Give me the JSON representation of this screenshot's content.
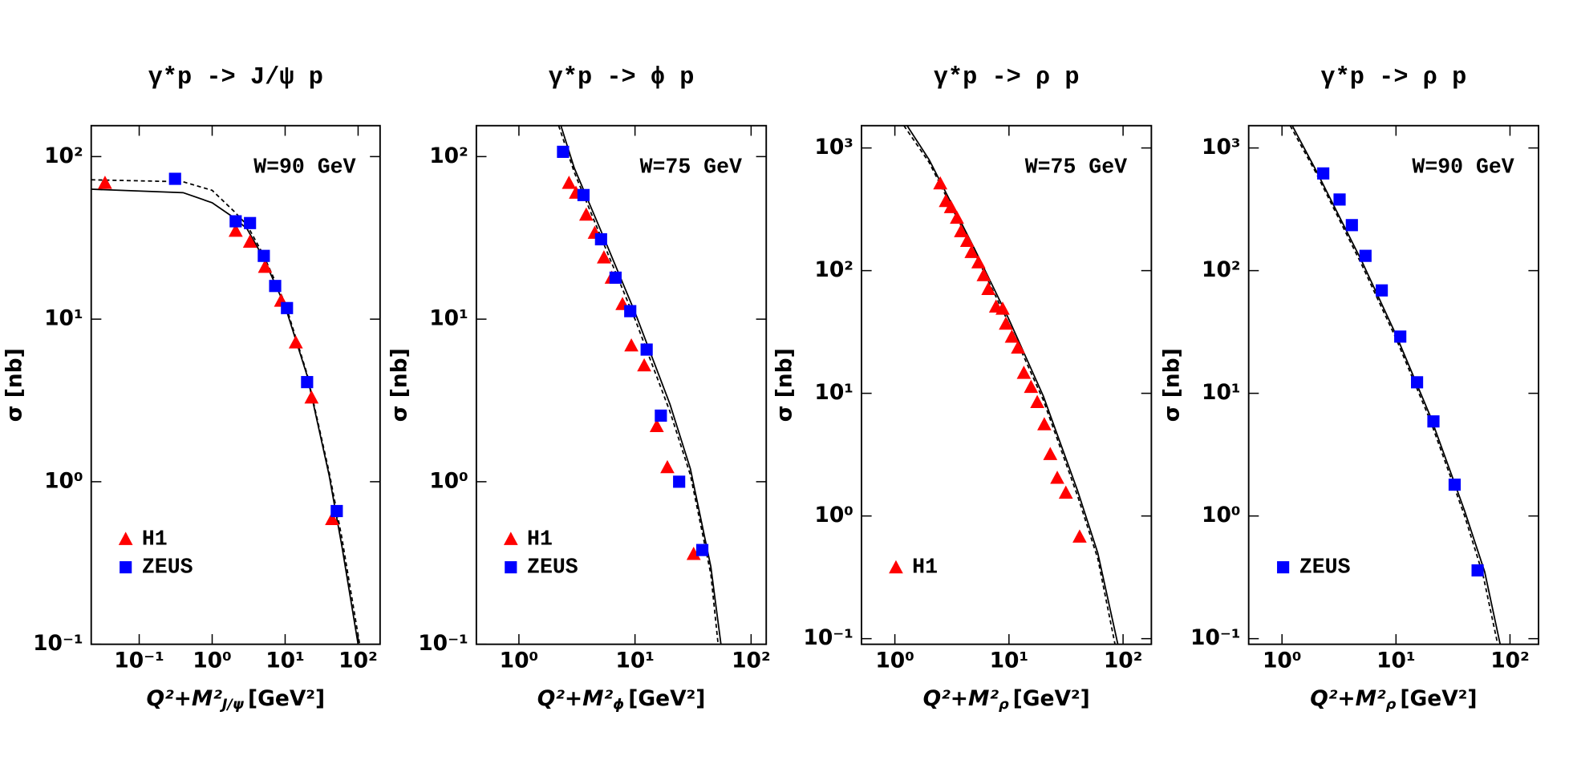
{
  "chart_data": [
    {
      "type": "scatter",
      "title": "γ*p -> J/ψ p",
      "annotation": "W=90 GeV",
      "xlabel": {
        "base": "Q²+M²",
        "sub": "J/ψ",
        "unit": "[GeV²]"
      },
      "ylabel": "σ [nb]",
      "xscale": "log",
      "yscale": "log",
      "legend": "lower left",
      "xlim": [
        0.022,
        200
      ],
      "ylim": [
        0.1,
        155
      ],
      "xticks": [
        {
          "value": 0.1,
          "label": "10⁻¹"
        },
        {
          "value": 1,
          "label": "10⁰"
        },
        {
          "value": 10,
          "label": "10¹"
        },
        {
          "value": 100,
          "label": "10²"
        }
      ],
      "yticks": [
        {
          "value": 0.1,
          "label": "10⁻¹"
        },
        {
          "value": 1,
          "label": "10⁰"
        },
        {
          "value": 10,
          "label": "10¹"
        },
        {
          "value": 100,
          "label": "10²"
        }
      ],
      "series": [
        {
          "kind": "line",
          "style": "solid",
          "color": "#000000",
          "x": [
            0.022,
            0.4,
            1,
            2,
            3,
            5,
            10,
            20,
            40,
            60,
            100
          ],
          "values": [
            63,
            60,
            52,
            42,
            36,
            24,
            12,
            4.5,
            1.1,
            0.4,
            0.1
          ]
        },
        {
          "kind": "line",
          "style": "dashed",
          "color": "#000000",
          "x": [
            0.022,
            0.4,
            1,
            2,
            3,
            5,
            10,
            20,
            40,
            60,
            105
          ],
          "values": [
            72,
            70,
            62,
            46,
            38,
            25,
            12.5,
            4.6,
            1.15,
            0.45,
            0.1
          ]
        },
        {
          "kind": "marker",
          "name": "H1",
          "marker": "triangle",
          "color": "#ff0000",
          "x": [
            0.034,
            2.1,
            3.3,
            5.3,
            8.8,
            14,
            23,
            44
          ],
          "values": [
            69,
            35,
            30,
            21,
            13,
            7.2,
            3.3,
            0.59
          ]
        },
        {
          "kind": "marker",
          "name": "ZEUS",
          "marker": "square",
          "color": "#0000ff",
          "x": [
            0.31,
            2.1,
            3.3,
            5.1,
            7.3,
            10.6,
            20,
            51
          ],
          "values": [
            73,
            40,
            39,
            24.5,
            16,
            11.7,
            4.1,
            0.66
          ]
        }
      ]
    },
    {
      "type": "scatter",
      "title": "γ*p -> ϕ p",
      "annotation": "W=75 GeV",
      "xlabel": {
        "base": "Q²+M²",
        "sub": "ϕ",
        "unit": "[GeV²]"
      },
      "ylabel": "σ [nb]",
      "xscale": "log",
      "yscale": "log",
      "legend": "lower left",
      "xlim": [
        0.43,
        135
      ],
      "ylim": [
        0.1,
        155
      ],
      "xticks": [
        {
          "value": 1,
          "label": "10⁰"
        },
        {
          "value": 10,
          "label": "10¹"
        },
        {
          "value": 100,
          "label": "10²"
        }
      ],
      "yticks": [
        {
          "value": 0.1,
          "label": "10⁻¹"
        },
        {
          "value": 1,
          "label": "10⁰"
        },
        {
          "value": 10,
          "label": "10¹"
        },
        {
          "value": 100,
          "label": "10²"
        }
      ],
      "series": [
        {
          "kind": "line",
          "style": "solid",
          "color": "#000000",
          "x": [
            2.3,
            3,
            5,
            10,
            20,
            30,
            45,
            55
          ],
          "values": [
            155,
            85,
            36,
            11,
            3,
            1.2,
            0.3,
            0.1
          ]
        },
        {
          "kind": "line",
          "style": "dashed",
          "color": "#000000",
          "x": [
            2.2,
            3,
            5,
            10,
            20,
            30,
            45,
            52
          ],
          "values": [
            155,
            80,
            33,
            10,
            2.7,
            1.1,
            0.27,
            0.1
          ]
        },
        {
          "kind": "marker",
          "name": "H1",
          "marker": "triangle",
          "color": "#ff0000",
          "x": [
            2.7,
            3.1,
            3.8,
            4.5,
            5.4,
            6.3,
            7.8,
            9.3,
            12,
            15.4,
            19,
            32
          ],
          "values": [
            69,
            60,
            44,
            34,
            24,
            18,
            12.4,
            6.9,
            5.2,
            2.2,
            1.23,
            0.36
          ]
        },
        {
          "kind": "marker",
          "name": "ZEUS",
          "marker": "square",
          "color": "#0000ff",
          "x": [
            2.4,
            3.6,
            5.1,
            6.8,
            9.1,
            12.6,
            16.7,
            24,
            38
          ],
          "values": [
            107,
            58,
            31,
            18,
            11.2,
            6.5,
            2.55,
            1.0,
            0.38
          ]
        }
      ]
    },
    {
      "type": "scatter",
      "title": "γ*p -> ρ p",
      "annotation": "W=75 GeV",
      "xlabel": {
        "base": "Q²+M²",
        "sub": "ρ",
        "unit": "[GeV²]"
      },
      "ylabel": "σ [nb]",
      "xscale": "log",
      "yscale": "log",
      "legend": "lower left",
      "xlim": [
        0.51,
        177
      ],
      "ylim": [
        0.09,
        1520
      ],
      "xticks": [
        {
          "value": 1,
          "label": "10⁰"
        },
        {
          "value": 10,
          "label": "10¹"
        },
        {
          "value": 100,
          "label": "10²"
        }
      ],
      "yticks": [
        {
          "value": 0.1,
          "label": "10⁻¹"
        },
        {
          "value": 1,
          "label": "10⁰"
        },
        {
          "value": 10,
          "label": "10¹"
        },
        {
          "value": 100,
          "label": "10²"
        },
        {
          "value": 1000,
          "label": "10³"
        }
      ],
      "series": [
        {
          "kind": "line",
          "style": "solid",
          "color": "#000000",
          "x": [
            1.28,
            2,
            5,
            10,
            20,
            40,
            60,
            90
          ],
          "values": [
            1520,
            800,
            150,
            40,
            9.5,
            1.6,
            0.5,
            0.09
          ]
        },
        {
          "kind": "line",
          "style": "dashed",
          "color": "#000000",
          "x": [
            1.2,
            2,
            5,
            10,
            20,
            40,
            60,
            85
          ],
          "values": [
            1520,
            760,
            140,
            37,
            8.8,
            1.45,
            0.45,
            0.09
          ]
        },
        {
          "kind": "marker",
          "name": "H1",
          "marker": "triangle",
          "color": "#ff0000",
          "x": [
            2.5,
            2.8,
            3.1,
            3.5,
            3.8,
            4.3,
            4.7,
            5.4,
            6,
            6.6,
            7.7,
            8.8,
            9.4,
            10.6,
            12,
            13.5,
            15.6,
            17.7,
            20.4,
            23,
            26.5,
            31.5,
            41.6
          ],
          "values": [
            515,
            370,
            330,
            270,
            210,
            175,
            142,
            117,
            92,
            71,
            51,
            49,
            37,
            29,
            23.6,
            14.7,
            11.3,
            8.5,
            5.6,
            3.2,
            2.05,
            1.55,
            0.68
          ]
        }
      ]
    },
    {
      "type": "scatter",
      "title": "γ*p -> ρ p",
      "annotation": "W=90 GeV",
      "xlabel": {
        "base": "Q²+M²",
        "sub": "ρ",
        "unit": "[GeV²]"
      },
      "ylabel": "σ [nb]",
      "xscale": "log",
      "yscale": "log",
      "legend": "lower left",
      "xlim": [
        0.51,
        178
      ],
      "ylim": [
        0.09,
        1520
      ],
      "xticks": [
        {
          "value": 1,
          "label": "10⁰"
        },
        {
          "value": 10,
          "label": "10¹"
        },
        {
          "value": 100,
          "label": "10²"
        }
      ],
      "yticks": [
        {
          "value": 0.1,
          "label": "10⁻¹"
        },
        {
          "value": 1,
          "label": "10⁰"
        },
        {
          "value": 10,
          "label": "10¹"
        },
        {
          "value": 100,
          "label": "10²"
        },
        {
          "value": 1000,
          "label": "10³"
        }
      ],
      "series": [
        {
          "kind": "line",
          "style": "solid",
          "color": "#000000",
          "x": [
            1.23,
            2,
            5,
            10,
            20,
            40,
            60,
            82
          ],
          "values": [
            1520,
            650,
            120,
            30,
            6.5,
            1.1,
            0.35,
            0.09
          ]
        },
        {
          "kind": "line",
          "style": "dashed",
          "color": "#000000",
          "x": [
            1.18,
            2,
            5,
            10,
            20,
            40,
            58,
            78
          ],
          "values": [
            1520,
            620,
            112,
            28,
            6,
            1,
            0.33,
            0.09
          ]
        },
        {
          "kind": "marker",
          "name": "ZEUS",
          "marker": "square",
          "color": "#0000ff",
          "x": [
            2.3,
            3.2,
            4.1,
            5.4,
            7.5,
            10.9,
            15.3,
            21.3,
            32.7,
            52
          ],
          "values": [
            620,
            380,
            235,
            132,
            69,
            29,
            12.3,
            5.9,
            1.8,
            0.36
          ]
        }
      ]
    }
  ]
}
